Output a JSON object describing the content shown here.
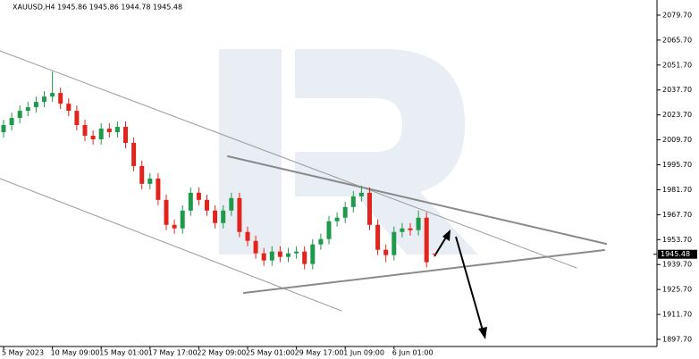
{
  "chart_data": {
    "type": "candlestick",
    "title": "XAUUSD,H4  1945.86 1945.86 1944.78 1945.48",
    "categories": [
      "5 May 2023",
      null,
      null,
      null,
      null,
      null,
      "10 May 09:00",
      null,
      null,
      null,
      null,
      null,
      "15 May 01:00",
      null,
      null,
      null,
      null,
      null,
      "17 May 17:00",
      null,
      null,
      null,
      null,
      null,
      "22 May 09:00",
      null,
      null,
      null,
      null,
      null,
      "25 May 01:00",
      null,
      null,
      null,
      null,
      null,
      "29 May 17:00",
      null,
      null,
      null,
      null,
      null,
      "1 Jun 09:00",
      null,
      null,
      null,
      null,
      null,
      "6 Jun 01:00",
      null,
      null,
      null,
      null,
      null
    ],
    "open": [
      2014,
      2018,
      2022,
      2026,
      2028,
      2031,
      2034,
      2036,
      2030,
      2026,
      2018,
      2012,
      2010,
      2016,
      2014,
      2017,
      2008,
      1995,
      1985,
      1988,
      1976,
      1962,
      1960,
      1970,
      1980,
      1976,
      1970,
      1963,
      1970,
      1977,
      1958,
      1953,
      1946,
      1942,
      1947,
      1944,
      1946,
      1947,
      1940,
      1951,
      1954,
      1964,
      1966,
      1972,
      1978,
      1980,
      1962,
      1948,
      1945,
      1958,
      1960,
      1959,
      1966,
      1945.86
    ],
    "high": [
      2021,
      2025,
      2029,
      2031,
      2034,
      2037,
      2048,
      2039,
      2033,
      2029,
      2021,
      2015,
      2019,
      2019,
      2020,
      2020,
      2011,
      1998,
      1991,
      1991,
      1979,
      1965,
      1973,
      1983,
      1983,
      1979,
      1973,
      1973,
      1980,
      1980,
      1961,
      1956,
      1949,
      1950,
      1950,
      1949,
      1950,
      1950,
      1954,
      1957,
      1967,
      1969,
      1975,
      1981,
      1984,
      1983,
      1965,
      1951,
      1961,
      1963,
      1963,
      1970,
      1969,
      1945.86
    ],
    "low": [
      2011,
      2015,
      2019,
      2023,
      2025,
      2028,
      2031,
      2027,
      2023,
      2015,
      2009,
      2007,
      2007,
      2011,
      2011,
      2005,
      1992,
      1982,
      1982,
      1973,
      1959,
      1957,
      1957,
      1967,
      1973,
      1967,
      1960,
      1960,
      1967,
      1955,
      1950,
      1943,
      1939,
      1939,
      1941,
      1941,
      1943,
      1937,
      1937,
      1948,
      1951,
      1961,
      1963,
      1969,
      1975,
      1959,
      1945,
      1941,
      1942,
      1955,
      1956,
      1956,
      1938,
      1944.78
    ],
    "close": [
      2018,
      2022,
      2026,
      2028,
      2031,
      2034,
      2036,
      2030,
      2026,
      2018,
      2012,
      2010,
      2016,
      2014,
      2017,
      2008,
      1995,
      1985,
      1988,
      1976,
      1962,
      1960,
      1970,
      1980,
      1976,
      1970,
      1963,
      1970,
      1977,
      1958,
      1953,
      1946,
      1942,
      1947,
      1944,
      1946,
      1947,
      1940,
      1951,
      1954,
      1964,
      1966,
      1972,
      1978,
      1980,
      1962,
      1948,
      1945,
      1958,
      1960,
      1959,
      1966,
      1941,
      1945.48
    ],
    "up_color": "#1f9a4a",
    "down_color": "#e3241c",
    "current_price": 1945.48,
    "ylim": [
      1893.7,
      2088.2
    ],
    "yticks": [
      {
        "value": 2079.7,
        "label": "2079.70"
      },
      {
        "value": 2065.7,
        "label": "2065.70"
      },
      {
        "value": 2051.7,
        "label": "2051.70"
      },
      {
        "value": 2037.7,
        "label": "2037.70"
      },
      {
        "value": 2023.7,
        "label": "2023.70"
      },
      {
        "value": 2009.7,
        "label": "2009.70"
      },
      {
        "value": 1995.7,
        "label": "1995.70"
      },
      {
        "value": 1981.7,
        "label": "1981.70"
      },
      {
        "value": 1967.7,
        "label": "1967.70"
      },
      {
        "value": 1953.7,
        "label": "1953.70"
      },
      {
        "value": 1939.7,
        "label": "1939.70"
      },
      {
        "value": 1925.7,
        "label": "1925.70"
      },
      {
        "value": 1911.7,
        "label": "1911.70"
      },
      {
        "value": 1897.7,
        "label": "1897.70"
      }
    ]
  }
}
